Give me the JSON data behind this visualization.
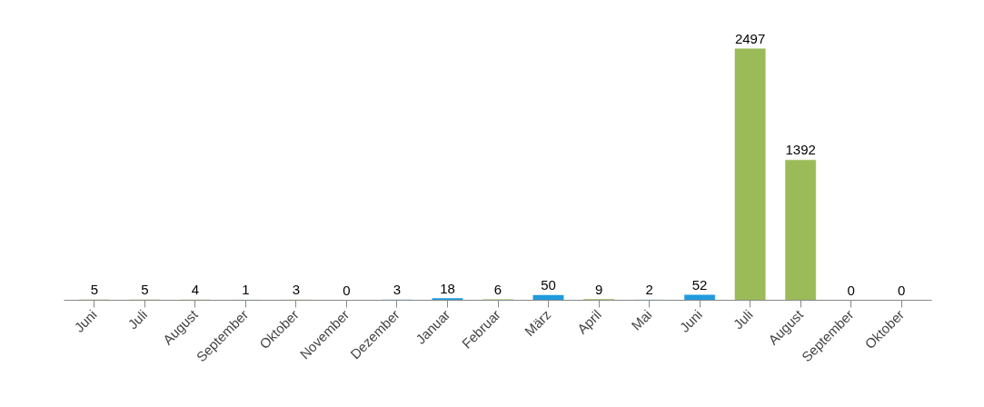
{
  "chart_data": {
    "type": "bar",
    "categories": [
      "Juni",
      "Juli",
      "August",
      "September",
      "Oktober",
      "November",
      "Dezember",
      "Januar",
      "Februar",
      "März",
      "April",
      "Mai",
      "Juni",
      "Juli",
      "August",
      "September",
      "Oktober"
    ],
    "values": [
      5,
      5,
      4,
      1,
      3,
      0,
      3,
      18,
      6,
      50,
      9,
      2,
      52,
      2497,
      1392,
      0,
      0
    ],
    "colors": [
      "#9bbb59",
      "#9bbb59",
      "#9bbb59",
      "#1f9bde",
      "#9bbb59",
      "#1f9bde",
      "#1f9bde",
      "#1f9bde",
      "#9bbb59",
      "#1f9bde",
      "#9bbb59",
      "#1f9bde",
      "#1f9bde",
      "#9bbb59",
      "#9bbb59",
      "#9bbb59",
      "#9bbb59"
    ],
    "data_labels": true,
    "grid": false
  }
}
